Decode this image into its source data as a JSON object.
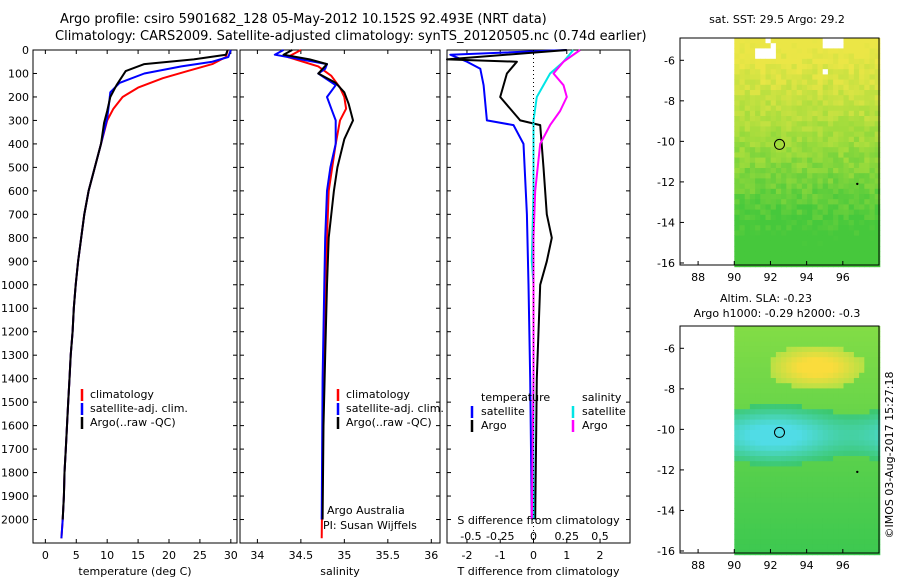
{
  "header": {
    "title_line1": "Argo profile: csiro 5901682_128 05-May-2012 10.152S 92.493E (NRT data)",
    "title_line2": "Climatology: CARS2009. Satellite-adjusted climatology: synTS_20120505.nc (0.74d earlier)"
  },
  "colors": {
    "red": "#ff0000",
    "blue": "#0000ff",
    "black": "#000000",
    "cyan": "#00e5e5",
    "magenta": "#ff00ff"
  },
  "chart_data": [
    {
      "id": "temperature",
      "type": "line",
      "xlabel": "temperature (deg C)",
      "ylabel": "",
      "xlim": [
        -2,
        31
      ],
      "ylim": [
        2100,
        0
      ],
      "xticks": [
        "0",
        "5",
        "10",
        "15",
        "20",
        "25",
        "30"
      ],
      "xtick_values": [
        0,
        5,
        10,
        15,
        20,
        25,
        30
      ],
      "yticks": [
        "0",
        "100",
        "200",
        "300",
        "400",
        "500",
        "600",
        "700",
        "800",
        "900",
        "1000",
        "1100",
        "1200",
        "1300",
        "1400",
        "1500",
        "1600",
        "1700",
        "1800",
        "1900",
        "2000"
      ],
      "ytick_values": [
        0,
        100,
        200,
        300,
        400,
        500,
        600,
        700,
        800,
        900,
        1000,
        1100,
        1200,
        1300,
        1400,
        1500,
        1600,
        1700,
        1800,
        1900,
        2000
      ],
      "legend": [
        "climatology",
        "satellite-adj. clim.",
        "Argo(..raw -QC)"
      ],
      "series": [
        {
          "name": "climatology",
          "color": "red",
          "points": [
            [
              29.5,
              0
            ],
            [
              29.2,
              30
            ],
            [
              27,
              60
            ],
            [
              23,
              90
            ],
            [
              19,
              120
            ],
            [
              15,
              160
            ],
            [
              12.5,
              200
            ],
            [
              11,
              250
            ],
            [
              10,
              300
            ],
            [
              9,
              400
            ],
            [
              8,
              500
            ],
            [
              7,
              600
            ],
            [
              6.3,
              700
            ],
            [
              5.8,
              800
            ],
            [
              5.3,
              900
            ],
            [
              4.9,
              1000
            ],
            [
              4.6,
              1100
            ],
            [
              4.4,
              1200
            ],
            [
              4.1,
              1300
            ],
            [
              3.9,
              1400
            ],
            [
              3.7,
              1500
            ],
            [
              3.5,
              1600
            ],
            [
              3.3,
              1700
            ],
            [
              3.1,
              1800
            ],
            [
              3,
              1900
            ],
            [
              2.8,
              2000
            ],
            [
              2.6,
              2080
            ]
          ]
        },
        {
          "name": "satellite-adj. clim.",
          "color": "blue",
          "points": [
            [
              30,
              0
            ],
            [
              29.6,
              30
            ],
            [
              27,
              50
            ],
            [
              22,
              70
            ],
            [
              16,
              100
            ],
            [
              12,
              140
            ],
            [
              10.5,
              180
            ],
            [
              10.3,
              230
            ],
            [
              10,
              290
            ],
            [
              9,
              400
            ],
            [
              8,
              500
            ],
            [
              7,
              600
            ],
            [
              6.3,
              700
            ],
            [
              5.8,
              800
            ],
            [
              5.3,
              900
            ],
            [
              4.9,
              1000
            ],
            [
              4.6,
              1100
            ],
            [
              4.4,
              1200
            ],
            [
              4.1,
              1300
            ],
            [
              3.9,
              1400
            ],
            [
              3.7,
              1500
            ],
            [
              3.5,
              1600
            ],
            [
              3.3,
              1700
            ],
            [
              3.1,
              1800
            ],
            [
              3,
              1900
            ],
            [
              2.8,
              2000
            ],
            [
              2.6,
              2080
            ]
          ]
        },
        {
          "name": "Argo(..raw -QC)",
          "color": "black",
          "points": [
            [
              29.5,
              0
            ],
            [
              29.2,
              20
            ],
            [
              24,
              40
            ],
            [
              16,
              60
            ],
            [
              13,
              90
            ],
            [
              11.5,
              150
            ],
            [
              10.5,
              200
            ],
            [
              10,
              260
            ],
            [
              9.5,
              310
            ],
            [
              9,
              400
            ],
            [
              8,
              500
            ],
            [
              7,
              600
            ],
            [
              6.3,
              700
            ],
            [
              5.8,
              800
            ],
            [
              5.3,
              900
            ],
            [
              4.9,
              1000
            ],
            [
              4.6,
              1100
            ],
            [
              4.4,
              1200
            ],
            [
              4.1,
              1300
            ],
            [
              3.9,
              1400
            ],
            [
              3.7,
              1500
            ],
            [
              3.5,
              1600
            ],
            [
              3.3,
              1700
            ],
            [
              3.1,
              1800
            ],
            [
              3,
              1900
            ],
            [
              2.8,
              2000
            ]
          ]
        }
      ]
    },
    {
      "id": "salinity",
      "type": "line",
      "xlabel": "salinity",
      "xlim": [
        33.8,
        36.1
      ],
      "ylim": [
        2100,
        0
      ],
      "xticks": [
        "34",
        "34.5",
        "35",
        "35.5",
        "36"
      ],
      "xtick_values": [
        34,
        34.5,
        35,
        35.5,
        36
      ],
      "legend": [
        "climatology",
        "satellite-adj. clim.",
        "Argo(..raw -QC)"
      ],
      "annotations": [
        "Argo Australia",
        "PI: Susan Wijffels"
      ],
      "series": [
        {
          "name": "climatology",
          "color": "red",
          "points": [
            [
              34.5,
              0
            ],
            [
              34.35,
              30
            ],
            [
              34.7,
              70
            ],
            [
              34.85,
              110
            ],
            [
              34.95,
              160
            ],
            [
              35.0,
              200
            ],
            [
              35.02,
              250
            ],
            [
              34.95,
              300
            ],
            [
              34.9,
              400
            ],
            [
              34.86,
              500
            ],
            [
              34.82,
              600
            ],
            [
              34.8,
              800
            ],
            [
              34.78,
              1000
            ],
            [
              34.76,
              1400
            ],
            [
              34.74,
              2080
            ]
          ]
        },
        {
          "name": "satellite-adj. clim.",
          "color": "blue",
          "points": [
            [
              34.3,
              0
            ],
            [
              34.2,
              20
            ],
            [
              34.5,
              40
            ],
            [
              34.8,
              60
            ],
            [
              34.78,
              80
            ],
            [
              34.7,
              100
            ],
            [
              34.9,
              150
            ],
            [
              34.8,
              200
            ],
            [
              34.85,
              250
            ],
            [
              34.9,
              300
            ],
            [
              34.9,
              400
            ],
            [
              34.84,
              500
            ],
            [
              34.8,
              600
            ],
            [
              34.78,
              800
            ],
            [
              34.77,
              1000
            ],
            [
              34.75,
              1400
            ],
            [
              34.74,
              2000
            ]
          ]
        },
        {
          "name": "Argo(..raw -QC)",
          "color": "black",
          "points": [
            [
              34.4,
              0
            ],
            [
              34.3,
              20
            ],
            [
              34.6,
              40
            ],
            [
              34.8,
              60
            ],
            [
              34.7,
              100
            ],
            [
              34.9,
              140
            ],
            [
              35.0,
              180
            ],
            [
              35.05,
              230
            ],
            [
              35.1,
              300
            ],
            [
              35.0,
              380
            ],
            [
              34.92,
              500
            ],
            [
              34.88,
              600
            ],
            [
              34.85,
              700
            ],
            [
              34.82,
              800
            ],
            [
              34.8,
              1000
            ],
            [
              34.78,
              1300
            ],
            [
              34.76,
              1600
            ],
            [
              34.75,
              2000
            ]
          ]
        }
      ]
    },
    {
      "id": "difference",
      "type": "line",
      "xlabel": "T difference from climatology",
      "x2label": "S difference from climatology",
      "xlim": [
        -2.6,
        2.9
      ],
      "ylim": [
        2100,
        0
      ],
      "xticks": [
        "-2",
        "-1",
        "0",
        "1",
        "2"
      ],
      "xtick_values": [
        -2,
        -1,
        0,
        1,
        2
      ],
      "s_xticks": [
        "-0.5",
        "-0.25",
        "0",
        "0.25",
        "0.5"
      ],
      "s_xtick_positions": [
        -2,
        -1,
        0,
        1,
        2
      ],
      "legend_headers": [
        "temperature",
        "salinity"
      ],
      "legend": [
        "satellite",
        "Argo",
        "satellite",
        "Argo"
      ],
      "series": [
        {
          "name": "T satellite",
          "color": "blue",
          "points": [
            [
              1.0,
              0
            ],
            [
              -2.5,
              20
            ],
            [
              -2.0,
              50
            ],
            [
              -1.6,
              80
            ],
            [
              -1.5,
              150
            ],
            [
              -1.4,
              300
            ],
            [
              -0.6,
              320
            ],
            [
              -0.3,
              400
            ],
            [
              -0.2,
              700
            ],
            [
              -0.15,
              1000
            ],
            [
              -0.1,
              1400
            ],
            [
              -0.05,
              2000
            ]
          ]
        },
        {
          "name": "T Argo",
          "color": "black",
          "points": [
            [
              1.0,
              0
            ],
            [
              -2.6,
              40
            ],
            [
              -0.5,
              50
            ],
            [
              -0.8,
              100
            ],
            [
              -1.0,
              200
            ],
            [
              -0.4,
              300
            ],
            [
              0.2,
              320
            ],
            [
              0.3,
              500
            ],
            [
              0.4,
              700
            ],
            [
              0.55,
              800
            ],
            [
              0.4,
              900
            ],
            [
              0.2,
              1000
            ],
            [
              0.1,
              1400
            ],
            [
              0.05,
              2000
            ]
          ]
        },
        {
          "name": "S satellite",
          "color": "cyan",
          "points": [
            [
              1.2,
              0
            ],
            [
              0.9,
              50
            ],
            [
              0.5,
              100
            ],
            [
              0.1,
              200
            ],
            [
              0.0,
              300
            ],
            [
              0.0,
              600
            ],
            [
              -0.05,
              900
            ],
            [
              0.0,
              1000
            ],
            [
              0.0,
              1500
            ],
            [
              0.0,
              2000
            ]
          ]
        },
        {
          "name": "S Argo",
          "color": "magenta",
          "points": [
            [
              1.4,
              0
            ],
            [
              0.9,
              50
            ],
            [
              0.6,
              100
            ],
            [
              0.9,
              150
            ],
            [
              1.0,
              200
            ],
            [
              0.8,
              260
            ],
            [
              0.5,
              320
            ],
            [
              0.2,
              400
            ],
            [
              0.05,
              600
            ],
            [
              0.0,
              800
            ],
            [
              0.0,
              1400
            ],
            [
              -0.05,
              2000
            ]
          ]
        }
      ]
    },
    {
      "id": "sst_map",
      "type": "heatmap",
      "title": "sat. SST: 29.5 Argo: 29.2",
      "xticks": [
        "88",
        "90",
        "92",
        "94",
        "96"
      ],
      "xtick_values": [
        88,
        90,
        92,
        94,
        96
      ],
      "yticks": [
        "-6",
        "-8",
        "-10",
        "-12",
        "-14",
        "-16"
      ],
      "ytick_values": [
        -6,
        -8,
        -10,
        -12,
        -14,
        -16
      ],
      "xlim": [
        87,
        98
      ],
      "ylim": [
        -16.1,
        -4.9
      ],
      "argo_position": [
        92.5,
        -10.15
      ]
    },
    {
      "id": "sla_map",
      "type": "heatmap",
      "title_line1": "Altim. SLA: -0.23",
      "title_line2": "Argo h1000: -0.29 h2000: -0.3",
      "xticks": [
        "88",
        "90",
        "92",
        "94",
        "96"
      ],
      "xtick_values": [
        88,
        90,
        92,
        94,
        96
      ],
      "yticks": [
        "-6",
        "-8",
        "-10",
        "-12",
        "-14",
        "-16"
      ],
      "ytick_values": [
        -6,
        -8,
        -10,
        -12,
        -14,
        -16
      ],
      "xlim": [
        87,
        98
      ],
      "ylim": [
        -16.1,
        -4.9
      ],
      "argo_position": [
        92.5,
        -10.15
      ]
    }
  ],
  "footer": {
    "credit": "©IMOS 03-Aug-2017 15:27:18"
  }
}
